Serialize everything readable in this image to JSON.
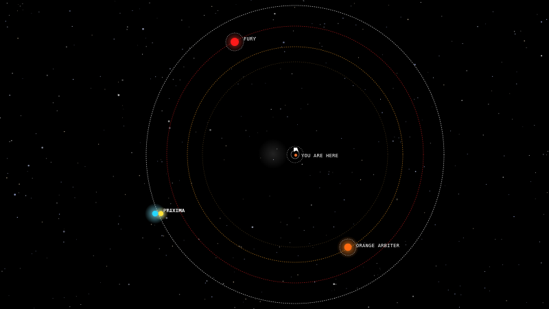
{
  "map": {
    "background": "#000000",
    "you_are_here": "YOU ARE HERE",
    "ship_icon": "ship-marker-icon",
    "stars": [
      {
        "name": "FURY",
        "color": "#ff1a1a",
        "glow": "#ff3b2f",
        "icon": "red-star-icon"
      },
      {
        "name": "PRIXIMA",
        "overlap_label": "TAXIMA",
        "color": "#27d6ff",
        "glow": "#7fe8ff",
        "companion_color": "#ffe23a",
        "icon": "binary-star-icon"
      },
      {
        "name": "ORANGE ARBITER",
        "color": "#ff6a10",
        "glow": "#ff8a2a",
        "icon": "orange-star-icon"
      }
    ],
    "orbit_colors": {
      "outer": "#d8d8d8",
      "red": "#a01818",
      "orange": "#b0731f",
      "inner": "#7a5a2a"
    }
  }
}
